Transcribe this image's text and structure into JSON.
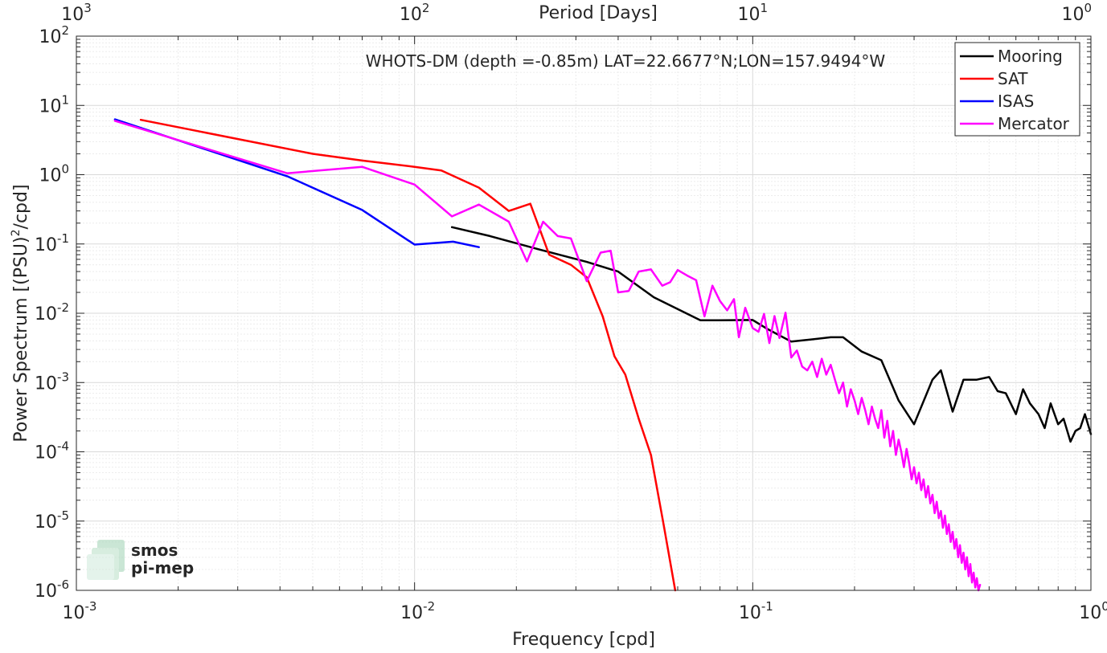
{
  "chart_data": {
    "type": "line",
    "title": "WHOTS-DM (depth =-0.85m) LAT=22.6677°N;LON=157.9494°W",
    "xlabel": "Frequency [cpd]",
    "ylabel_base": "Power Spectrum [(PSU)",
    "ylabel_sup": "2",
    "ylabel_tail": "/cpd]",
    "top_xlabel": "Period [Days]",
    "x_scale": "log",
    "y_scale": "log",
    "xlim": [
      0.001,
      1
    ],
    "ylim": [
      1e-06,
      100
    ],
    "grid": true,
    "legend_position": "top-right",
    "x_ticks": [
      {
        "value": 0.001,
        "base": "10",
        "exp": "-3"
      },
      {
        "value": 0.01,
        "base": "10",
        "exp": "-2"
      },
      {
        "value": 0.1,
        "base": "10",
        "exp": "-1"
      },
      {
        "value": 1,
        "base": "10",
        "exp": "0"
      }
    ],
    "top_ticks": [
      {
        "value": 0.001,
        "base": "10",
        "exp": "3"
      },
      {
        "value": 0.01,
        "base": "10",
        "exp": "2"
      },
      {
        "value": 0.1,
        "base": "10",
        "exp": "1"
      },
      {
        "value": 1,
        "base": "10",
        "exp": "0"
      }
    ],
    "y_ticks": [
      {
        "value": 1e-06,
        "base": "10",
        "exp": "-6"
      },
      {
        "value": 1e-05,
        "base": "10",
        "exp": "-5"
      },
      {
        "value": 0.0001,
        "base": "10",
        "exp": "-4"
      },
      {
        "value": 0.001,
        "base": "10",
        "exp": "-3"
      },
      {
        "value": 0.01,
        "base": "10",
        "exp": "-2"
      },
      {
        "value": 0.1,
        "base": "10",
        "exp": "-1"
      },
      {
        "value": 1,
        "base": "10",
        "exp": "0"
      },
      {
        "value": 10,
        "base": "10",
        "exp": "1"
      },
      {
        "value": 100,
        "base": "10",
        "exp": "2"
      }
    ],
    "series": [
      {
        "name": "Mooring",
        "color": "#000000",
        "x": [
          0.0129,
          0.0167,
          0.023,
          0.0323,
          0.04,
          0.051,
          0.07,
          0.08,
          0.1,
          0.11,
          0.13,
          0.15,
          0.17,
          0.185,
          0.21,
          0.24,
          0.27,
          0.3,
          0.34,
          0.36,
          0.39,
          0.42,
          0.46,
          0.5,
          0.53,
          0.56,
          0.6,
          0.63,
          0.66,
          0.7,
          0.73,
          0.76,
          0.8,
          0.83,
          0.87,
          0.9,
          0.93,
          0.96,
          1.0
        ],
        "y": [
          0.175,
          0.13,
          0.085,
          0.055,
          0.04,
          0.017,
          0.0079,
          0.0079,
          0.008,
          0.006,
          0.0039,
          0.0042,
          0.0045,
          0.0045,
          0.0028,
          0.0021,
          0.00055,
          0.00025,
          0.0011,
          0.0015,
          0.00038,
          0.0011,
          0.0011,
          0.0012,
          0.00075,
          0.0007,
          0.00035,
          0.0008,
          0.0005,
          0.00035,
          0.00022,
          0.0005,
          0.00025,
          0.0003,
          0.00014,
          0.0002,
          0.00022,
          0.00035,
          0.00018
        ]
      },
      {
        "name": "SAT",
        "color": "#ff0000",
        "x": [
          0.00155,
          0.005,
          0.007,
          0.01,
          0.012,
          0.0155,
          0.019,
          0.022,
          0.025,
          0.029,
          0.0323,
          0.036,
          0.039,
          0.042,
          0.046,
          0.05,
          0.0545,
          0.059
        ],
        "y": [
          6.2,
          2.0,
          1.6,
          1.3,
          1.15,
          0.65,
          0.3,
          0.38,
          0.07,
          0.05,
          0.033,
          0.009,
          0.0024,
          0.0013,
          0.0003,
          9e-05,
          9e-06,
          6e-07
        ]
      },
      {
        "name": "ISAS",
        "color": "#0000ff",
        "x": [
          0.0013,
          0.0042,
          0.007,
          0.01,
          0.013,
          0.0155
        ],
        "y": [
          6.3,
          0.95,
          0.31,
          0.098,
          0.108,
          0.09
        ]
      },
      {
        "name": "Mercator",
        "color": "#ff00ff",
        "x": [
          0.0013,
          0.0042,
          0.007,
          0.01,
          0.0129,
          0.0155,
          0.019,
          0.0215,
          0.024,
          0.0265,
          0.029,
          0.0323,
          0.0355,
          0.038,
          0.04,
          0.043,
          0.046,
          0.05,
          0.054,
          0.057,
          0.06,
          0.064,
          0.068,
          0.072,
          0.076,
          0.08,
          0.084,
          0.088,
          0.091,
          0.095,
          0.1,
          0.104,
          0.108,
          0.112,
          0.116,
          0.12,
          0.125,
          0.13,
          0.135,
          0.14,
          0.145,
          0.15,
          0.155,
          0.16,
          0.165,
          0.17,
          0.175,
          0.18,
          0.185,
          0.19,
          0.195,
          0.2,
          0.205,
          0.21,
          0.215,
          0.22,
          0.225,
          0.23,
          0.235,
          0.24,
          0.245,
          0.25,
          0.255,
          0.26,
          0.265,
          0.27,
          0.275,
          0.28,
          0.285,
          0.29,
          0.295,
          0.3,
          0.305,
          0.31,
          0.315,
          0.32,
          0.325,
          0.33,
          0.335,
          0.34,
          0.345,
          0.35,
          0.355,
          0.36,
          0.365,
          0.37,
          0.375,
          0.38,
          0.385,
          0.39,
          0.395,
          0.4,
          0.405,
          0.41,
          0.415,
          0.42,
          0.425,
          0.43,
          0.435,
          0.44,
          0.445,
          0.45,
          0.455,
          0.46,
          0.465,
          0.47
        ],
        "y": [
          6.0,
          1.05,
          1.3,
          0.72,
          0.25,
          0.37,
          0.21,
          0.056,
          0.21,
          0.13,
          0.12,
          0.029,
          0.075,
          0.08,
          0.02,
          0.021,
          0.04,
          0.043,
          0.025,
          0.028,
          0.042,
          0.035,
          0.03,
          0.009,
          0.025,
          0.015,
          0.011,
          0.016,
          0.0045,
          0.012,
          0.0061,
          0.0054,
          0.0098,
          0.0037,
          0.0091,
          0.0044,
          0.0102,
          0.0023,
          0.0029,
          0.0017,
          0.0015,
          0.002,
          0.0012,
          0.0022,
          0.0013,
          0.0018,
          0.0011,
          0.0007,
          0.001,
          0.00045,
          0.0008,
          0.00055,
          0.00035,
          0.0006,
          0.0004,
          0.00025,
          0.00045,
          0.0003,
          0.00022,
          0.0004,
          0.00016,
          0.00028,
          0.00012,
          0.0002,
          9e-05,
          0.00015,
          0.0001,
          6e-05,
          0.00011,
          7e-05,
          4e-05,
          6e-05,
          3.5e-05,
          5e-05,
          2.8e-05,
          4e-05,
          2.2e-05,
          3.2e-05,
          1.8e-05,
          2.4e-05,
          1.3e-05,
          1.9e-05,
          1.1e-05,
          1.4e-05,
          8e-06,
          1.2e-05,
          6.5e-06,
          9e-06,
          5e-06,
          7e-06,
          4e-06,
          5.5e-06,
          3e-06,
          4.5e-06,
          2.5e-06,
          3.5e-06,
          2e-06,
          3e-06,
          1.6e-06,
          2.4e-06,
          1.3e-06,
          1.8e-06,
          1.1e-06,
          1.5e-06,
          9e-07,
          1.2e-06
        ]
      }
    ]
  },
  "watermark": {
    "line1": "smos",
    "line2": "pi-mep",
    "color": "#7dbf9a"
  }
}
